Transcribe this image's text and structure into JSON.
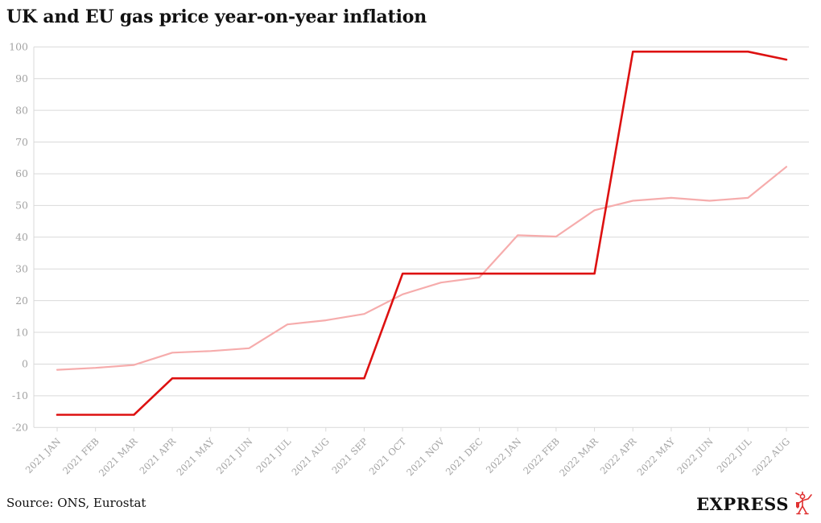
{
  "footer": {
    "source": "Source: ONS, Eurostat",
    "brand": "EXPRESS"
  },
  "colors": {
    "uk_line": "#dd1111",
    "eu_line": "#f6acac",
    "grid": "#d9d9d9",
    "axis_label": "#a3a3a3",
    "title_text": "#111111",
    "brand_red": "#e03131"
  },
  "chart_data": {
    "type": "line",
    "title": "UK and EU gas price year-on-year inflation",
    "xlabel": "",
    "ylabel": "",
    "ylim": [
      -20,
      100
    ],
    "yticks": [
      100,
      90,
      80,
      70,
      60,
      50,
      40,
      30,
      20,
      10,
      0,
      -10,
      -20
    ],
    "grid": "horizontal",
    "legend": "none",
    "categories": [
      "2021 JAN",
      "2021 FEB",
      "2021 MAR",
      "2021 APR",
      "2021 MAY",
      "2021 JUN",
      "2021 JUL",
      "2021 AUG",
      "2021 SEP",
      "2021 OCT",
      "2021 NOV",
      "2021 DEC",
      "2022 JAN",
      "2022 FEB",
      "2022 MAR",
      "2022 APR",
      "2022 MAY",
      "2022 JUN",
      "2022 JUL",
      "2022 AUG"
    ],
    "series": [
      {
        "name": "EU",
        "color": "#f6acac",
        "width": 2.2,
        "values": [
          -1.8,
          -1.2,
          -0.3,
          3.6,
          4.1,
          5.0,
          12.5,
          13.8,
          15.8,
          22.0,
          25.7,
          27.3,
          40.6,
          40.2,
          48.5,
          51.5,
          52.4,
          51.5,
          52.4,
          62.2
        ]
      },
      {
        "name": "UK",
        "color": "#dd1111",
        "width": 2.6,
        "values": [
          -16,
          -16,
          -16,
          -4.5,
          -4.5,
          -4.5,
          -4.5,
          -4.5,
          -4.5,
          28.5,
          28.5,
          28.5,
          28.5,
          28.5,
          28.5,
          98.5,
          98.5,
          98.5,
          98.5,
          96
        ]
      }
    ]
  }
}
